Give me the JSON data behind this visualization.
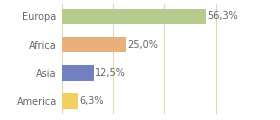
{
  "categories": [
    "Europa",
    "Africa",
    "Asia",
    "America"
  ],
  "values": [
    56.3,
    25.0,
    12.5,
    6.3
  ],
  "labels": [
    "56,3%",
    "25,0%",
    "12,5%",
    "6,3%"
  ],
  "bar_colors": [
    "#b5cc8e",
    "#e8b07a",
    "#7080c0",
    "#f0d060"
  ],
  "background_color": "#ffffff",
  "grid_color": "#d8ddb0",
  "xlim": [
    0,
    72
  ],
  "bar_height": 0.55,
  "label_fontsize": 7,
  "category_fontsize": 7,
  "text_color": "#666666"
}
